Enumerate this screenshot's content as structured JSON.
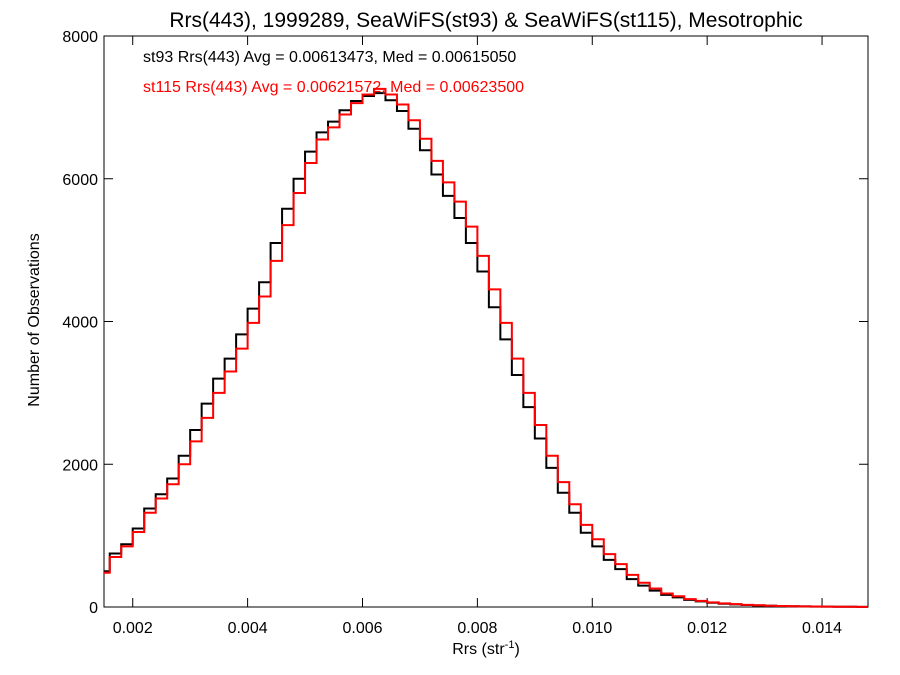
{
  "chart_data": {
    "type": "line",
    "title": "Rrs(443), 1999289, SeaWiFS(st93) & SeaWiFS(st115), Mesotrophic",
    "xlabel": "Rrs (str",
    "xlabel_sup": "-1",
    "xlabel_close": ")",
    "ylabel": "Number of Observations",
    "xlim": [
      0.0015,
      0.0148
    ],
    "ylim": [
      0,
      8000
    ],
    "x_ticks": [
      0.002,
      0.004,
      0.006,
      0.008,
      0.01,
      0.012,
      0.014
    ],
    "x_tick_labels": [
      "0.002",
      "0.004",
      "0.006",
      "0.008",
      "0.010",
      "0.012",
      "0.014"
    ],
    "y_ticks": [
      0,
      2000,
      4000,
      6000,
      8000
    ],
    "y_tick_labels": [
      "0",
      "2000",
      "4000",
      "6000",
      "8000"
    ],
    "grid": false,
    "step": true,
    "annotations": [
      {
        "text": "st93 Rrs(443) Avg = 0.00613473, Med = 0.00615050",
        "color": "#000000"
      },
      {
        "text": "st115 Rrs(443) Avg = 0.00621572, Med = 0.00623500",
        "color": "#ff0000"
      }
    ],
    "series": [
      {
        "color": "#000000",
        "x": [
          0.0015,
          0.0017,
          0.0019,
          0.0021,
          0.0023,
          0.0025,
          0.0027,
          0.0029,
          0.0031,
          0.0033,
          0.0035,
          0.0037,
          0.0039,
          0.0041,
          0.0043,
          0.0045,
          0.0047,
          0.0049,
          0.0051,
          0.0053,
          0.0055,
          0.0057,
          0.0059,
          0.0061,
          0.0063,
          0.0065,
          0.0067,
          0.0069,
          0.0071,
          0.0073,
          0.0075,
          0.0077,
          0.0079,
          0.0081,
          0.0083,
          0.0085,
          0.0087,
          0.0089,
          0.0091,
          0.0093,
          0.0095,
          0.0097,
          0.0099,
          0.0101,
          0.0103,
          0.0105,
          0.0107,
          0.0109,
          0.0111,
          0.0113,
          0.0115,
          0.0117,
          0.0119,
          0.0121,
          0.0123,
          0.0125,
          0.0127,
          0.0129,
          0.0131,
          0.0133,
          0.0135,
          0.0137,
          0.0139,
          0.0141,
          0.0143,
          0.0145,
          0.0147
        ],
        "y": [
          500,
          750,
          880,
          1100,
          1380,
          1580,
          1800,
          2120,
          2480,
          2850,
          3200,
          3480,
          3820,
          4180,
          4550,
          5100,
          5580,
          6000,
          6380,
          6650,
          6800,
          6960,
          7090,
          7160,
          7200,
          7100,
          6950,
          6700,
          6400,
          6060,
          5760,
          5450,
          5100,
          4700,
          4200,
          3750,
          3250,
          2800,
          2360,
          1950,
          1600,
          1320,
          1040,
          850,
          660,
          530,
          390,
          300,
          230,
          170,
          135,
          100,
          78,
          60,
          45,
          36,
          28,
          22,
          17,
          13,
          10,
          8,
          6,
          5,
          4,
          3,
          2
        ]
      },
      {
        "color": "#ff0000",
        "x": [
          0.0015,
          0.0017,
          0.0019,
          0.0021,
          0.0023,
          0.0025,
          0.0027,
          0.0029,
          0.0031,
          0.0033,
          0.0035,
          0.0037,
          0.0039,
          0.0041,
          0.0043,
          0.0045,
          0.0047,
          0.0049,
          0.0051,
          0.0053,
          0.0055,
          0.0057,
          0.0059,
          0.0061,
          0.0063,
          0.0065,
          0.0067,
          0.0069,
          0.0071,
          0.0073,
          0.0075,
          0.0077,
          0.0079,
          0.0081,
          0.0083,
          0.0085,
          0.0087,
          0.0089,
          0.0091,
          0.0093,
          0.0095,
          0.0097,
          0.0099,
          0.0101,
          0.0103,
          0.0105,
          0.0107,
          0.0109,
          0.0111,
          0.0113,
          0.0115,
          0.0117,
          0.0119,
          0.0121,
          0.0123,
          0.0125,
          0.0127,
          0.0129,
          0.0131,
          0.0133,
          0.0135,
          0.0137,
          0.0139,
          0.0141,
          0.0143,
          0.0145,
          0.0147
        ],
        "y": [
          480,
          700,
          850,
          1050,
          1320,
          1520,
          1720,
          2000,
          2320,
          2650,
          3000,
          3300,
          3620,
          3980,
          4350,
          4850,
          5350,
          5800,
          6220,
          6550,
          6720,
          6900,
          7060,
          7180,
          7260,
          7180,
          7040,
          6820,
          6560,
          6250,
          5950,
          5680,
          5330,
          4920,
          4450,
          3980,
          3480,
          3000,
          2550,
          2120,
          1750,
          1440,
          1150,
          950,
          740,
          600,
          450,
          340,
          260,
          190,
          150,
          110,
          85,
          65,
          50,
          40,
          30,
          24,
          18,
          14,
          11,
          9,
          7,
          5,
          4,
          3,
          2
        ]
      }
    ]
  }
}
